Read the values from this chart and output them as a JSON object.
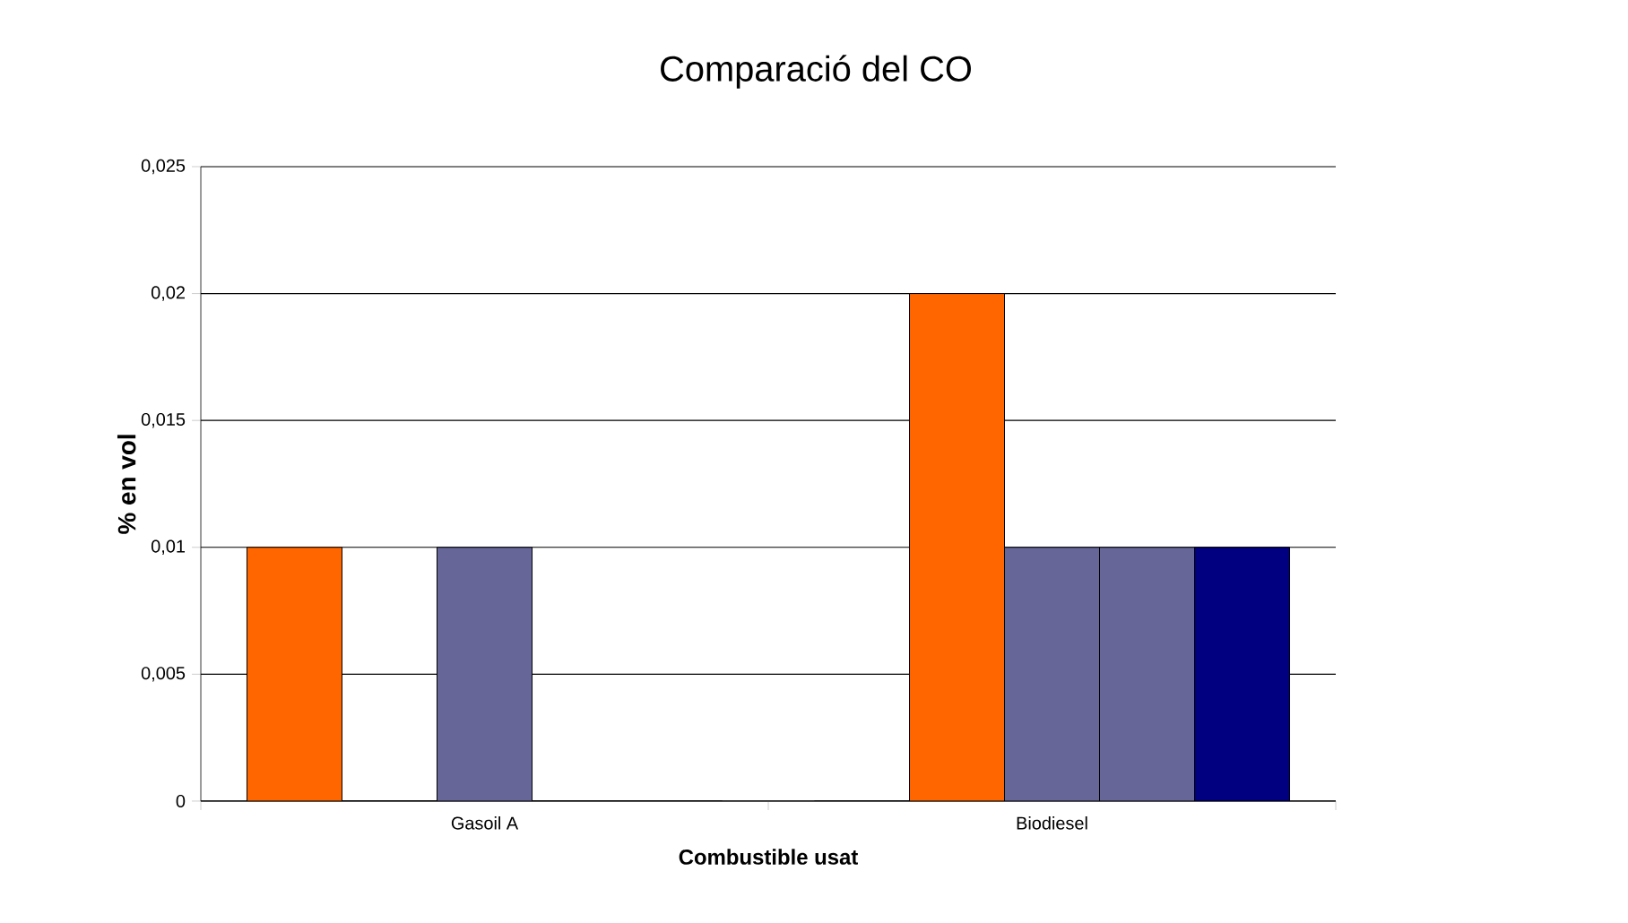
{
  "chart_data": {
    "type": "bar",
    "title": "Comparació del CO",
    "xlabel": "Combustible usat",
    "ylabel": "% en vol",
    "categories": [
      "Gasoil A",
      "Biodiesel"
    ],
    "series": [
      {
        "color": "#ff6600",
        "values": [
          0.01,
          0
        ]
      },
      {
        "color": "#ff6600",
        "values": [
          0,
          0.02
        ]
      },
      {
        "color": "#666699",
        "values": [
          0.01,
          0.01
        ]
      },
      {
        "color": "#666699",
        "values": [
          0,
          0.01
        ]
      },
      {
        "color": "#000080",
        "values": [
          0,
          0.01
        ]
      }
    ],
    "ylim": [
      0,
      0.025
    ],
    "yticks": [
      0,
      {
        "value": 0.005,
        "label": "0,005"
      },
      {
        "value": 0.01,
        "label": "0,01"
      },
      {
        "value": 0.015,
        "label": "0,015"
      },
      {
        "value": 0.02,
        "label": "0,02"
      },
      {
        "value": 0.025,
        "label": "0,025"
      }
    ],
    "grid": "y"
  }
}
